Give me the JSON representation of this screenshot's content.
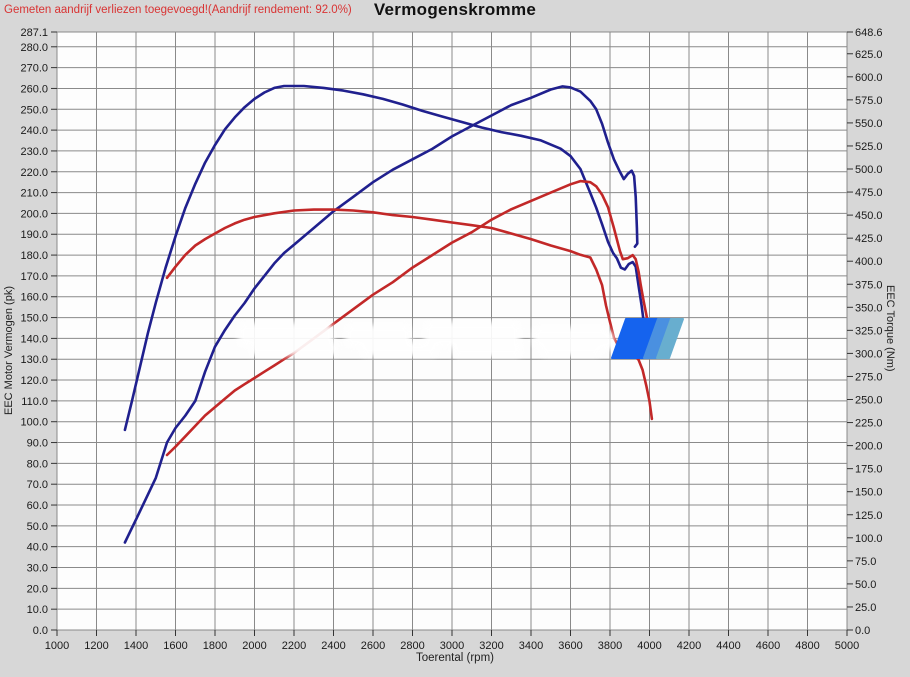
{
  "header": {
    "note": "Gemeten aandrijf verliezen toegevoegd!(Aandrijf rendement: 92.0%)",
    "note_color": "#d93434"
  },
  "title": "Vermogenskromme",
  "axes": {
    "left_label": "EEC Motor Vermogen (pk)",
    "right_label": "EEC Torque (Nm)",
    "x_label": "Toerental (rpm)"
  },
  "chart_data": {
    "type": "line",
    "title": "Vermogenskromme",
    "xlabel": "Toerental (rpm)",
    "ylabel_left": "EEC Motor Vermogen (pk)",
    "ylabel_right": "EEC Torque (Nm)",
    "xlim": [
      1000,
      5000
    ],
    "ylim_left": [
      0,
      287.1
    ],
    "ylim_right": [
      0,
      648.6
    ],
    "grid": true,
    "x_ticks": [
      1000,
      1200,
      1400,
      1600,
      1800,
      2000,
      2200,
      2400,
      2600,
      2800,
      3000,
      3200,
      3400,
      3600,
      3800,
      4000,
      4200,
      4400,
      4600,
      4800,
      5000
    ],
    "left_ticks": [
      287.1,
      280,
      270,
      260,
      250,
      240,
      230,
      220,
      210,
      200,
      190,
      180,
      170,
      160,
      150,
      140,
      130,
      120,
      110,
      100,
      90,
      80,
      70,
      60,
      50,
      40,
      30,
      20,
      10,
      0
    ],
    "right_ticks": [
      648.6,
      625,
      600,
      575,
      550,
      525,
      500,
      475,
      450,
      425,
      400,
      375,
      350,
      325,
      300,
      275,
      250,
      225,
      200,
      175,
      150,
      125,
      100,
      75,
      50,
      25,
      0
    ],
    "colors": {
      "blue_run": "#20208e",
      "red_run": "#c22828",
      "grid": "#8a8a8a",
      "plot_bg": "#fdfdfd"
    },
    "series": [
      {
        "name": "torque_run_blue",
        "axis": "right",
        "unit": "Nm",
        "color_key": "blue_run",
        "points": [
          [
            1344,
            217
          ],
          [
            1380,
            249
          ],
          [
            1420,
            285
          ],
          [
            1460,
            322
          ],
          [
            1500,
            355
          ],
          [
            1550,
            393
          ],
          [
            1600,
            427
          ],
          [
            1650,
            458
          ],
          [
            1700,
            484
          ],
          [
            1750,
            507
          ],
          [
            1800,
            526
          ],
          [
            1850,
            543
          ],
          [
            1900,
            556
          ],
          [
            1950,
            567
          ],
          [
            2000,
            576
          ],
          [
            2050,
            583
          ],
          [
            2100,
            588
          ],
          [
            2150,
            590
          ],
          [
            2250,
            590
          ],
          [
            2350,
            588
          ],
          [
            2450,
            585
          ],
          [
            2550,
            581
          ],
          [
            2650,
            576
          ],
          [
            2750,
            570
          ],
          [
            2850,
            563
          ],
          [
            2950,
            557
          ],
          [
            3050,
            551
          ],
          [
            3150,
            545
          ],
          [
            3250,
            540
          ],
          [
            3350,
            536
          ],
          [
            3450,
            531
          ],
          [
            3550,
            522
          ],
          [
            3600,
            514
          ],
          [
            3650,
            500
          ],
          [
            3700,
            474
          ],
          [
            3730,
            458
          ],
          [
            3760,
            440
          ],
          [
            3790,
            421
          ],
          [
            3815,
            409
          ],
          [
            3835,
            403
          ],
          [
            3855,
            393
          ],
          [
            3875,
            391
          ],
          [
            3895,
            397
          ],
          [
            3915,
            399
          ],
          [
            3930,
            394
          ],
          [
            3945,
            373
          ],
          [
            3960,
            352
          ],
          [
            3970,
            335
          ]
        ]
      },
      {
        "name": "power_run_blue",
        "axis": "left",
        "unit": "pk",
        "color_key": "blue_run",
        "points": [
          [
            1344,
            42
          ],
          [
            1400,
            53
          ],
          [
            1450,
            63
          ],
          [
            1500,
            73
          ],
          [
            1557,
            90
          ],
          [
            1600,
            97
          ],
          [
            1650,
            103
          ],
          [
            1700,
            110
          ],
          [
            1750,
            124
          ],
          [
            1800,
            136
          ],
          [
            1850,
            144
          ],
          [
            1900,
            151
          ],
          [
            1950,
            157
          ],
          [
            2000,
            164
          ],
          [
            2050,
            170
          ],
          [
            2100,
            176
          ],
          [
            2150,
            181
          ],
          [
            2200,
            185
          ],
          [
            2300,
            193
          ],
          [
            2400,
            201
          ],
          [
            2500,
            208
          ],
          [
            2600,
            215
          ],
          [
            2700,
            221
          ],
          [
            2800,
            226
          ],
          [
            2900,
            231
          ],
          [
            3000,
            237
          ],
          [
            3100,
            242
          ],
          [
            3200,
            247
          ],
          [
            3300,
            252
          ],
          [
            3400,
            255.5
          ],
          [
            3500,
            259.5
          ],
          [
            3560,
            261
          ],
          [
            3600,
            260.5
          ],
          [
            3650,
            258.5
          ],
          [
            3700,
            254
          ],
          [
            3730,
            250
          ],
          [
            3760,
            243
          ],
          [
            3790,
            234
          ],
          [
            3820,
            226
          ],
          [
            3850,
            220
          ],
          [
            3870,
            216.5
          ],
          [
            3890,
            219
          ],
          [
            3910,
            220.5
          ],
          [
            3922,
            218
          ],
          [
            3930,
            208
          ],
          [
            3936,
            193
          ],
          [
            3938,
            185.5
          ],
          [
            3926,
            184
          ]
        ]
      },
      {
        "name": "torque_run_red",
        "axis": "right",
        "unit": "Nm",
        "color_key": "red_run",
        "points": [
          [
            1557,
            382
          ],
          [
            1600,
            394
          ],
          [
            1650,
            407
          ],
          [
            1700,
            417
          ],
          [
            1750,
            424
          ],
          [
            1800,
            430
          ],
          [
            1850,
            436
          ],
          [
            1900,
            441
          ],
          [
            1950,
            445
          ],
          [
            2000,
            448
          ],
          [
            2100,
            452
          ],
          [
            2200,
            455
          ],
          [
            2300,
            456
          ],
          [
            2400,
            456
          ],
          [
            2500,
            455
          ],
          [
            2600,
            453
          ],
          [
            2700,
            450
          ],
          [
            2800,
            448
          ],
          [
            2900,
            445
          ],
          [
            3000,
            442
          ],
          [
            3100,
            439
          ],
          [
            3200,
            436
          ],
          [
            3300,
            430
          ],
          [
            3400,
            424
          ],
          [
            3500,
            417
          ],
          [
            3600,
            411
          ],
          [
            3650,
            407
          ],
          [
            3700,
            404
          ],
          [
            3730,
            391
          ],
          [
            3760,
            374
          ],
          [
            3780,
            352
          ],
          [
            3800,
            334
          ],
          [
            3820,
            317
          ],
          [
            3845,
            307
          ],
          [
            3880,
            303
          ],
          [
            3915,
            300
          ],
          [
            3945,
            293
          ],
          [
            3965,
            282
          ],
          [
            3985,
            264
          ],
          [
            4000,
            248
          ],
          [
            4012,
            229
          ]
        ]
      },
      {
        "name": "power_run_red",
        "axis": "left",
        "unit": "pk",
        "color_key": "red_run",
        "points": [
          [
            1557,
            84
          ],
          [
            1600,
            88
          ],
          [
            1650,
            93
          ],
          [
            1700,
            98
          ],
          [
            1750,
            103
          ],
          [
            1800,
            107
          ],
          [
            1850,
            111
          ],
          [
            1900,
            115
          ],
          [
            1950,
            118
          ],
          [
            2000,
            121
          ],
          [
            2050,
            124
          ],
          [
            2100,
            127
          ],
          [
            2150,
            130
          ],
          [
            2200,
            133
          ],
          [
            2300,
            140
          ],
          [
            2400,
            147
          ],
          [
            2500,
            154
          ],
          [
            2600,
            161
          ],
          [
            2700,
            167
          ],
          [
            2800,
            174
          ],
          [
            2900,
            180
          ],
          [
            3000,
            186
          ],
          [
            3100,
            191
          ],
          [
            3200,
            197
          ],
          [
            3300,
            202
          ],
          [
            3400,
            206
          ],
          [
            3500,
            210
          ],
          [
            3600,
            214
          ],
          [
            3650,
            215.5
          ],
          [
            3700,
            215
          ],
          [
            3730,
            213
          ],
          [
            3760,
            209
          ],
          [
            3790,
            203
          ],
          [
            3820,
            193
          ],
          [
            3850,
            182
          ],
          [
            3865,
            178
          ],
          [
            3890,
            178.5
          ],
          [
            3915,
            180
          ],
          [
            3930,
            178
          ],
          [
            3945,
            172
          ],
          [
            3955,
            166
          ],
          [
            3970,
            158
          ],
          [
            3985,
            151
          ],
          [
            4000,
            142
          ],
          [
            4008,
            137
          ]
        ]
      }
    ],
    "peak_values": {
      "blue_power_pk": 261.0,
      "blue_torque_nm": 589.6,
      "red_power_pk": 215.5,
      "red_torque_nm": 456.0
    },
    "logo_colors": [
      "#1563ee",
      "#4a90e0",
      "#68aecf"
    ]
  }
}
